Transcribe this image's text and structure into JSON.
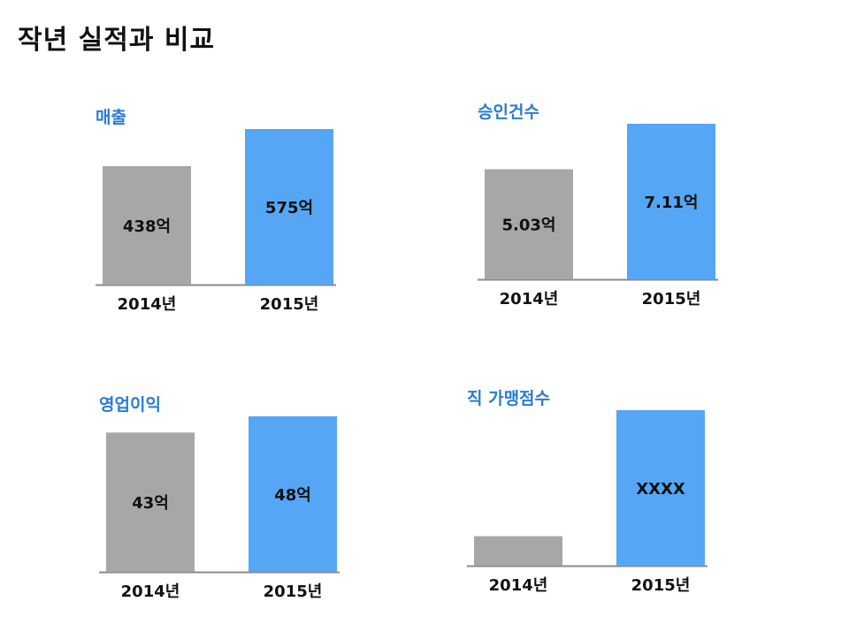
{
  "title": "작년 실적과 비교",
  "colors": {
    "title": "#2a7bd5",
    "bar2014": "#a6a7a6",
    "bar2015": "#55a6f5",
    "axis": "#8a8a8a",
    "text": "#111111"
  },
  "chart_data": [
    {
      "type": "bar",
      "title": "매출",
      "categories": [
        "2014년",
        "2015년"
      ],
      "values": [
        438,
        575
      ],
      "labels": [
        "438억",
        "575억"
      ],
      "ylim": [
        0,
        575
      ]
    },
    {
      "type": "bar",
      "title": "승인건수",
      "categories": [
        "2014년",
        "2015년"
      ],
      "values": [
        5.03,
        7.11
      ],
      "labels": [
        "5.03억",
        "7.11억"
      ],
      "ylim": [
        0,
        7.11
      ]
    },
    {
      "type": "bar",
      "title": "영업이익",
      "categories": [
        "2014년",
        "2015년"
      ],
      "values": [
        43,
        48
      ],
      "labels": [
        "43억",
        "48억"
      ],
      "ylim": [
        0,
        48
      ]
    },
    {
      "type": "bar",
      "title": "직 가맹점수",
      "categories": [
        "2014년",
        "2015년"
      ],
      "values": [
        0.19,
        1
      ],
      "labels": [
        "",
        "XXXX"
      ],
      "ylim": [
        0,
        1
      ]
    }
  ]
}
